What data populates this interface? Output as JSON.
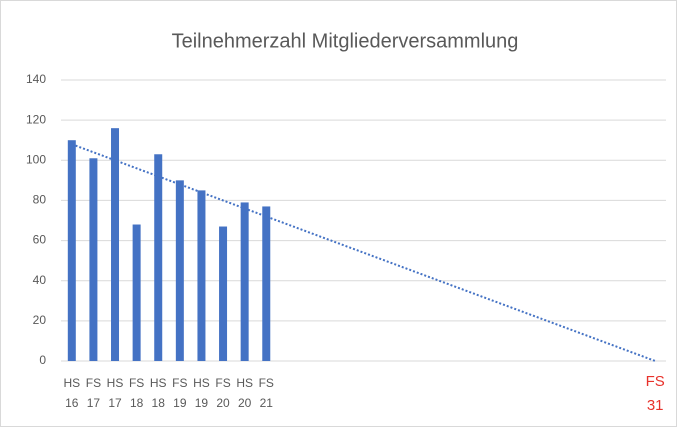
{
  "chart_data": {
    "type": "bar",
    "title": "Teilnehmerzahl Mitgliederversammlung",
    "categories": [
      "HS 16",
      "FS 17",
      "HS 17",
      "FS 18",
      "HS 18",
      "FS 19",
      "HS 19",
      "FS 20",
      "HS 20",
      "FS 21",
      null,
      null,
      null,
      null,
      null,
      null,
      null,
      null,
      null,
      null,
      null,
      null,
      null,
      null,
      null,
      null,
      null,
      "FS 31"
    ],
    "category_label_colors": [
      null,
      null,
      null,
      null,
      null,
      null,
      null,
      null,
      null,
      null,
      null,
      null,
      null,
      null,
      null,
      null,
      null,
      null,
      null,
      null,
      null,
      null,
      null,
      null,
      null,
      null,
      null,
      "#e8322b"
    ],
    "values": [
      110,
      101,
      116,
      68,
      103,
      90,
      85,
      67,
      79,
      77,
      null,
      null,
      null,
      null,
      null,
      null,
      null,
      null,
      null,
      null,
      null,
      null,
      null,
      null,
      null,
      null,
      null,
      null
    ],
    "color": "#4472c4",
    "trendline": {
      "from": 108,
      "to": 0,
      "color": "#4472c4"
    },
    "ylim": [
      0,
      140
    ],
    "yticks": [
      0,
      20,
      40,
      60,
      80,
      100,
      120,
      140
    ],
    "grid": true
  }
}
